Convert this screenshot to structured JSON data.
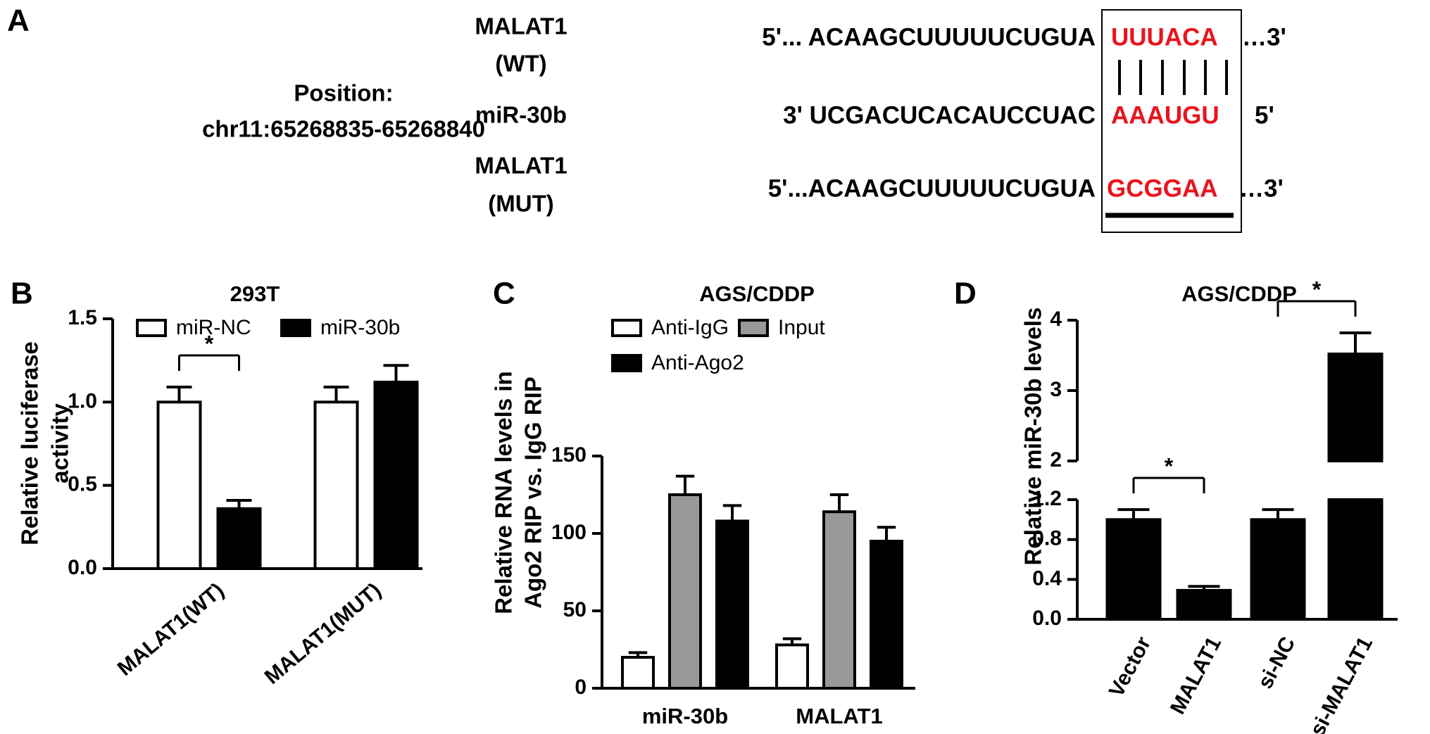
{
  "panel_a": {
    "label": "A",
    "position": [
      "Position:",
      "chr11:65268835-65268840"
    ],
    "rows": [
      {
        "name": [
          "MALAT1",
          "(WT)"
        ],
        "left": "5'... ACAAGCUUUUUCUGUA",
        "site": "UUUACA",
        "right": "…3'"
      },
      {
        "name": [
          "miR-30b"
        ],
        "left": "3' UCGACUCACAUCCUAC",
        "site": "AAAUGU",
        "right": "5'"
      },
      {
        "name": [
          "MALAT1",
          "(MUT)"
        ],
        "left": "5'...ACAAGCUUUUUCUGUA",
        "site": "GCGGAA",
        "right": "…3'"
      }
    ]
  },
  "chart_data": [
    {
      "type": "bar",
      "panel": "B",
      "title": "293T",
      "ylabel": [
        "Relative luciferase",
        "activity"
      ],
      "categories": [
        "MALAT1(WT)",
        "MALAT1(MUT)"
      ],
      "series": [
        {
          "name": "miR-NC",
          "color": "#ffffff",
          "values": [
            1.0,
            1.0
          ],
          "errors": [
            0.09,
            0.09
          ]
        },
        {
          "name": "miR-30b",
          "color": "#000000",
          "values": [
            0.36,
            1.12
          ],
          "errors": [
            0.05,
            0.1
          ]
        }
      ],
      "ylim": [
        0,
        1.5
      ],
      "yticks": [
        {
          "value": 0,
          "label": "0.0"
        },
        {
          "value": 0.5,
          "label": "0.5"
        },
        {
          "value": 1,
          "label": "1.0"
        },
        {
          "value": 1.5,
          "label": "1.5"
        }
      ],
      "significance": [
        {
          "label": "*",
          "category": "MALAT1(WT)",
          "between": [
            "miR-NC",
            "miR-30b"
          ]
        }
      ]
    },
    {
      "type": "bar",
      "panel": "C",
      "title": "AGS/CDDP",
      "ylabel": [
        "Relative RNA levels in",
        "Ago2 RIP vs. IgG RIP"
      ],
      "categories": [
        "miR-30b",
        "MALAT1"
      ],
      "series": [
        {
          "name": "Anti-IgG",
          "color": "#ffffff",
          "values": [
            20,
            28
          ],
          "errors": [
            3,
            4
          ]
        },
        {
          "name": "Input",
          "color": "#999999",
          "values": [
            125,
            114
          ],
          "errors": [
            12,
            11
          ]
        },
        {
          "name": "Anti-Ago2",
          "color": "#000000",
          "values": [
            108,
            95
          ],
          "errors": [
            10,
            9
          ]
        }
      ],
      "ylim": [
        0,
        150
      ],
      "yticks": [
        0,
        50,
        100,
        150
      ]
    },
    {
      "type": "bar",
      "panel": "D",
      "title": "AGS/CDDP",
      "ylabel": [
        "Relative miR-30b levels"
      ],
      "categories": [
        "Vector",
        "MALAT1",
        "si-NC",
        "si-MALAT1"
      ],
      "series": [
        {
          "color": "#000000",
          "values": [
            1.0,
            0.29,
            1.0,
            3.52
          ],
          "errors": [
            0.1,
            0.04,
            0.1,
            0.3
          ]
        }
      ],
      "ylim": [
        0,
        4
      ],
      "axis_break": [
        1.2,
        2
      ],
      "yticks": [
        {
          "value": 0,
          "label": "0.0"
        },
        0.4,
        0.8,
        1.2,
        2,
        3,
        4
      ],
      "significance": [
        {
          "label": "*",
          "between": [
            "Vector",
            "MALAT1"
          ]
        },
        {
          "label": "*",
          "between": [
            "si-NC",
            "si-MALAT1"
          ]
        }
      ]
    }
  ]
}
